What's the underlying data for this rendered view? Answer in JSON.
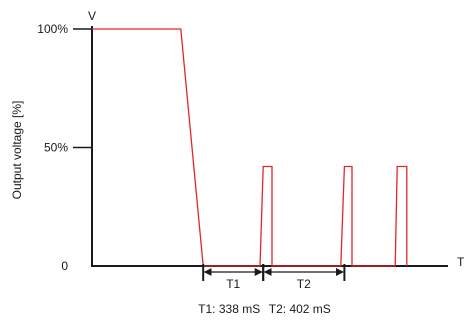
{
  "chart_data": {
    "type": "line",
    "xlabel": "T",
    "ylabel": "Output voltage [%]",
    "y_axis_unit": "V",
    "yticks": [
      {
        "value": 100,
        "label": "100%"
      },
      {
        "value": 50,
        "label": "50%"
      },
      {
        "value": 0,
        "label": "0"
      }
    ],
    "ylim": [
      0,
      100
    ],
    "grid": false,
    "line_color": "#e3262c",
    "axis_color": "#1a1a1a",
    "series": [
      {
        "points": [
          [
            0,
            100
          ],
          [
            222,
            100
          ],
          [
            278,
            0
          ],
          [
            420,
            0
          ],
          [
            428,
            42
          ],
          [
            450,
            42
          ],
          [
            450,
            0
          ],
          [
            622,
            0
          ],
          [
            631,
            42
          ],
          [
            650,
            42
          ],
          [
            650,
            0
          ],
          [
            758,
            0
          ],
          [
            763,
            42
          ],
          [
            787,
            42
          ],
          [
            787,
            0
          ]
        ]
      }
    ],
    "intervals": [
      {
        "label": "T1",
        "from": 278,
        "to": 428,
        "caption": "T1: 338 mS"
      },
      {
        "label": "T2",
        "from": 428,
        "to": 631,
        "caption": "T2: 402 mS"
      }
    ]
  }
}
